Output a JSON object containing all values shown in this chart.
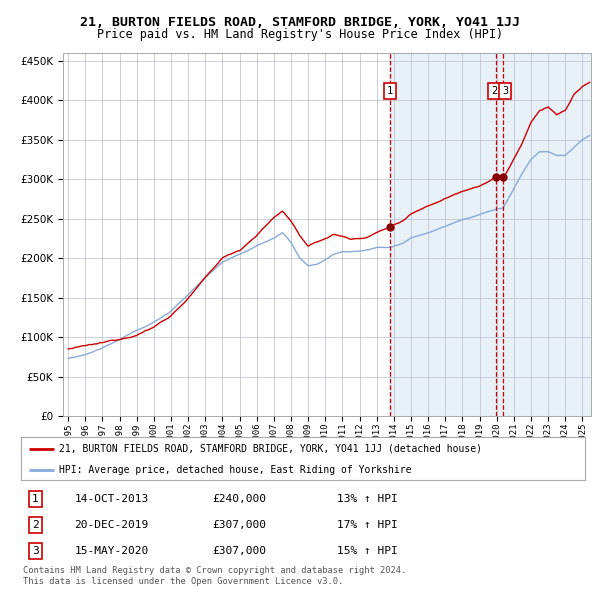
{
  "title": "21, BURTON FIELDS ROAD, STAMFORD BRIDGE, YORK, YO41 1JJ",
  "subtitle": "Price paid vs. HM Land Registry's House Price Index (HPI)",
  "legend_line1": "21, BURTON FIELDS ROAD, STAMFORD BRIDGE, YORK, YO41 1JJ (detached house)",
  "legend_line2": "HPI: Average price, detached house, East Riding of Yorkshire",
  "transactions": [
    {
      "num": "1",
      "date": "14-OCT-2013",
      "price": "£240,000",
      "change": "13% ↑ HPI",
      "x_year": 2013.79
    },
    {
      "num": "2",
      "date": "20-DEC-2019",
      "price": "£307,000",
      "change": "17% ↑ HPI",
      "x_year": 2019.97
    },
    {
      "num": "3",
      "date": "15-MAY-2020",
      "price": "£307,000",
      "change": "15% ↑ HPI",
      "x_year": 2020.37
    }
  ],
  "copyright": "Contains HM Land Registry data © Crown copyright and database right 2024.\nThis data is licensed under the Open Government Licence v3.0.",
  "ylim": [
    0,
    460000
  ],
  "xlim_start": 1994.7,
  "xlim_end": 2025.5,
  "red_color": "#cc0000",
  "blue_color": "#88aadd",
  "bg_color": "#cce0f0",
  "grid_color": "#bbbbcc",
  "marker_color": "#880000",
  "title_fontsize": 9.5,
  "subtitle_fontsize": 8.5
}
